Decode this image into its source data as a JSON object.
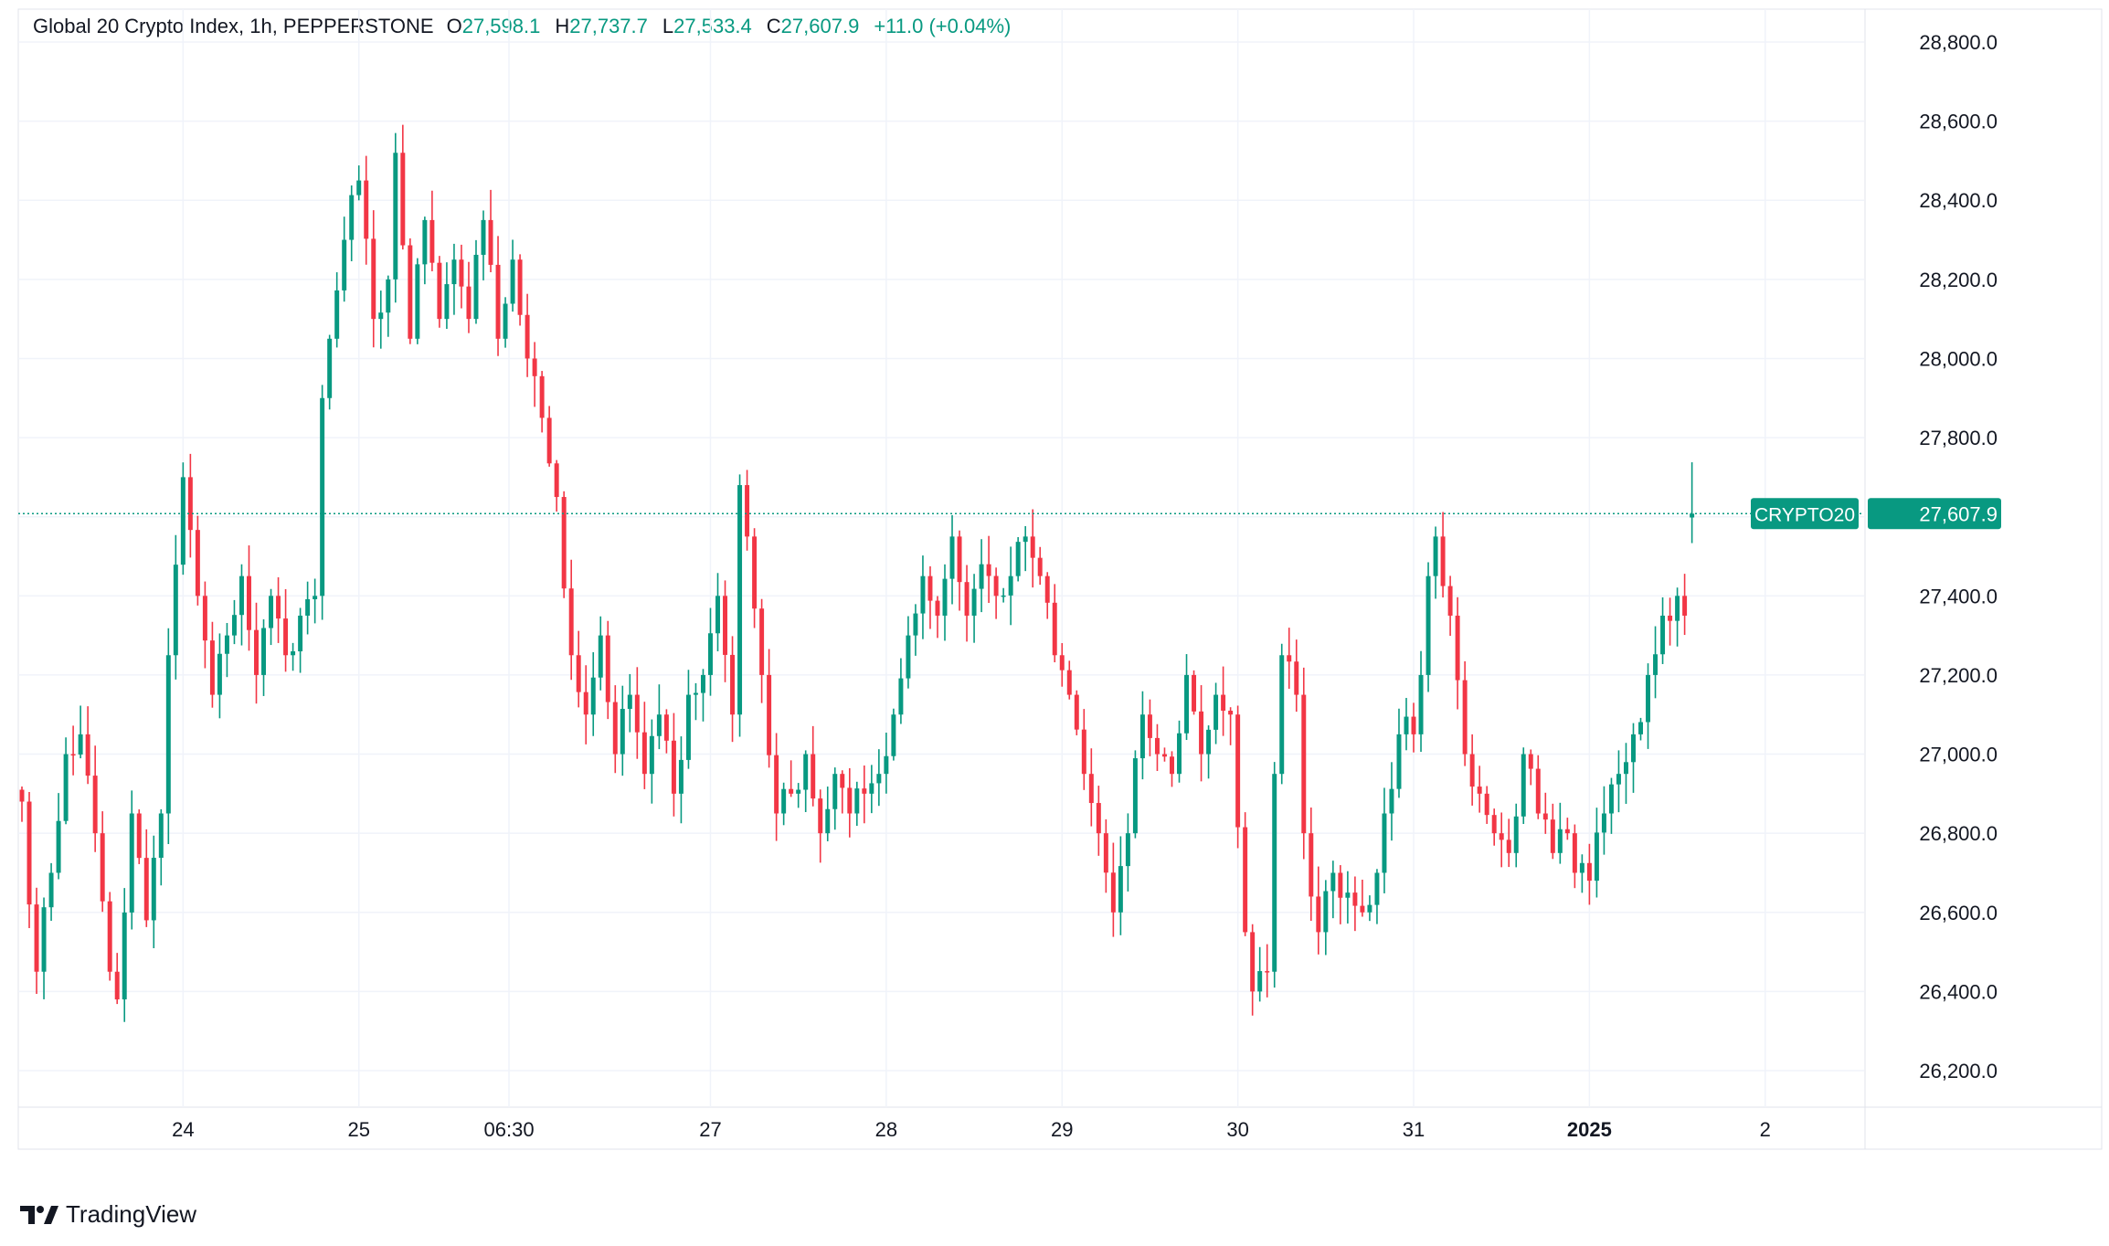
{
  "legend": {
    "title": "Global 20 Crypto Index, 1h, PEPPERSTONE",
    "open_label": "O",
    "open": "27,598.1",
    "high_label": "H",
    "high": "27,737.7",
    "low_label": "L",
    "low": "27,533.4",
    "close_label": "C",
    "close": "27,607.9",
    "change": "+11.0 (+0.04%)"
  },
  "footer": {
    "brand": "TradingView",
    "logo_icon": "tradingview-logo-icon"
  },
  "colors": {
    "up": "#089981",
    "down": "#F23645",
    "grid": "#F0F3FA",
    "text": "#131722",
    "price_line": "#089981"
  },
  "chart_data": {
    "type": "candlestick",
    "symbol": "CRYPTO20",
    "last_price": 27607.9,
    "last_price_label": "27,607.9",
    "ylim": [
      26000,
      28900
    ],
    "y_ticks": [
      26200,
      26400,
      26600,
      26800,
      27000,
      27200,
      27400,
      27600,
      27800,
      28000,
      28200,
      28400,
      28600,
      28800
    ],
    "y_tick_labels": [
      "26,200.0",
      "26,400.0",
      "26,600.0",
      "26,800.0",
      "27,000.0",
      "27,200.0",
      "27,400.0",
      "27,800.0",
      "28,000.0",
      "28,200.0",
      "28,400.0",
      "28,600.0",
      "28,800.0"
    ],
    "x_ticks": [
      {
        "label": "24",
        "hour": 22,
        "bold": false
      },
      {
        "label": "25",
        "hour": 46,
        "bold": false
      },
      {
        "label": "06:30",
        "hour": 66.5,
        "bold": false
      },
      {
        "label": "27",
        "hour": 94,
        "bold": false
      },
      {
        "label": "28",
        "hour": 118,
        "bold": false
      },
      {
        "label": "29",
        "hour": 142,
        "bold": false
      },
      {
        "label": "30",
        "hour": 166,
        "bold": false
      },
      {
        "label": "31",
        "hour": 190,
        "bold": false
      },
      {
        "label": "2025",
        "hour": 214,
        "bold": true
      },
      {
        "label": "2",
        "hour": 238,
        "bold": false
      }
    ],
    "x_range_hours": [
      0,
      252
    ],
    "anchors": [
      [
        0,
        26880
      ],
      [
        2,
        26450
      ],
      [
        4,
        26700
      ],
      [
        6,
        27000
      ],
      [
        8,
        27050
      ],
      [
        10,
        26800
      ],
      [
        12,
        26450
      ],
      [
        13,
        26380
      ],
      [
        15,
        26850
      ],
      [
        17,
        26580
      ],
      [
        19,
        26850
      ],
      [
        20,
        27250
      ],
      [
        22,
        27700
      ],
      [
        24,
        27400
      ],
      [
        26,
        27150
      ],
      [
        28,
        27300
      ],
      [
        30,
        27450
      ],
      [
        32,
        27200
      ],
      [
        34,
        27400
      ],
      [
        36,
        27250
      ],
      [
        38,
        27350
      ],
      [
        40,
        27400
      ],
      [
        41,
        27900
      ],
      [
        42,
        28050
      ],
      [
        44,
        28300
      ],
      [
        46,
        28450
      ],
      [
        48,
        28100
      ],
      [
        50,
        28200
      ],
      [
        51,
        28520
      ],
      [
        53,
        28050
      ],
      [
        55,
        28350
      ],
      [
        57,
        28100
      ],
      [
        59,
        28250
      ],
      [
        61,
        28100
      ],
      [
        63,
        28350
      ],
      [
        65,
        28050
      ],
      [
        67,
        28250
      ],
      [
        69,
        28000
      ],
      [
        71,
        27850
      ],
      [
        73,
        27650
      ],
      [
        75,
        27250
      ],
      [
        77,
        27100
      ],
      [
        79,
        27300
      ],
      [
        81,
        27000
      ],
      [
        83,
        27150
      ],
      [
        85,
        26950
      ],
      [
        87,
        27100
      ],
      [
        89,
        26900
      ],
      [
        91,
        27150
      ],
      [
        93,
        27200
      ],
      [
        95,
        27400
      ],
      [
        97,
        27100
      ],
      [
        98,
        27680
      ],
      [
        99,
        27550
      ],
      [
        101,
        27200
      ],
      [
        103,
        26850
      ],
      [
        105,
        26900
      ],
      [
        107,
        27000
      ],
      [
        109,
        26800
      ],
      [
        111,
        26950
      ],
      [
        113,
        26850
      ],
      [
        115,
        26900
      ],
      [
        117,
        26950
      ],
      [
        119,
        27100
      ],
      [
        121,
        27300
      ],
      [
        123,
        27450
      ],
      [
        125,
        27350
      ],
      [
        127,
        27550
      ],
      [
        129,
        27350
      ],
      [
        131,
        27480
      ],
      [
        133,
        27400
      ],
      [
        135,
        27450
      ],
      [
        137,
        27550
      ],
      [
        139,
        27450
      ],
      [
        141,
        27250
      ],
      [
        143,
        27150
      ],
      [
        145,
        26950
      ],
      [
        147,
        26800
      ],
      [
        149,
        26600
      ],
      [
        151,
        26800
      ],
      [
        153,
        27100
      ],
      [
        155,
        27000
      ],
      [
        157,
        26950
      ],
      [
        159,
        27200
      ],
      [
        161,
        27000
      ],
      [
        163,
        27150
      ],
      [
        165,
        27100
      ],
      [
        167,
        26550
      ],
      [
        168,
        26400
      ],
      [
        170,
        26450
      ],
      [
        171,
        26950
      ],
      [
        172,
        27250
      ],
      [
        174,
        27150
      ],
      [
        175,
        26800
      ],
      [
        177,
        26550
      ],
      [
        179,
        26700
      ],
      [
        181,
        26650
      ],
      [
        183,
        26600
      ],
      [
        185,
        26700
      ],
      [
        186,
        26850
      ],
      [
        188,
        27050
      ],
      [
        190,
        27050
      ],
      [
        191,
        27200
      ],
      [
        192,
        27450
      ],
      [
        193,
        27550
      ],
      [
        195,
        27350
      ],
      [
        197,
        27000
      ],
      [
        199,
        26900
      ],
      [
        201,
        26800
      ],
      [
        203,
        26750
      ],
      [
        205,
        27000
      ],
      [
        207,
        26850
      ],
      [
        209,
        26750
      ],
      [
        211,
        26800
      ],
      [
        212,
        26700
      ],
      [
        214,
        26680
      ],
      [
        216,
        26850
      ],
      [
        218,
        26950
      ],
      [
        220,
        27050
      ],
      [
        222,
        27200
      ],
      [
        224,
        27350
      ],
      [
        226,
        27400
      ],
      [
        227,
        27350
      ],
      [
        228,
        27607.9
      ]
    ],
    "last_candle": {
      "open": 27598.1,
      "high": 27737.7,
      "low": 27533.4,
      "close": 27607.9
    }
  }
}
